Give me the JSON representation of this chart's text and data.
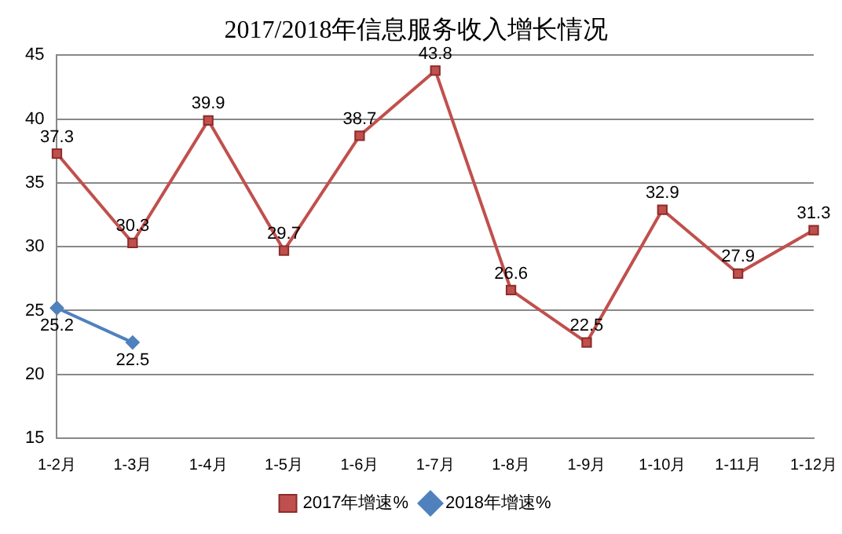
{
  "chart_data": {
    "type": "line",
    "title": "2017/2018年信息服务收入增长情况",
    "categories": [
      "1-2月",
      "1-3月",
      "1-4月",
      "1-5月",
      "1-6月",
      "1-7月",
      "1-8月",
      "1-9月",
      "1-10月",
      "1-11月",
      "1-12月"
    ],
    "series": [
      {
        "name": "2017年增速%",
        "color": "#c0504d",
        "marker": "square",
        "values": [
          37.3,
          30.3,
          39.9,
          29.7,
          38.7,
          43.8,
          26.6,
          22.5,
          32.9,
          27.9,
          31.3
        ]
      },
      {
        "name": "2018年增速%",
        "color": "#4f81bd",
        "marker": "diamond",
        "values": [
          25.2,
          22.5,
          null,
          null,
          null,
          null,
          null,
          null,
          null,
          null,
          null
        ]
      }
    ],
    "ylim": [
      15,
      45
    ],
    "yticks": [
      15,
      20,
      25,
      30,
      35,
      40,
      45
    ],
    "grid": "y",
    "legend": "bottom",
    "data_labels": true,
    "line_style": "solid"
  }
}
